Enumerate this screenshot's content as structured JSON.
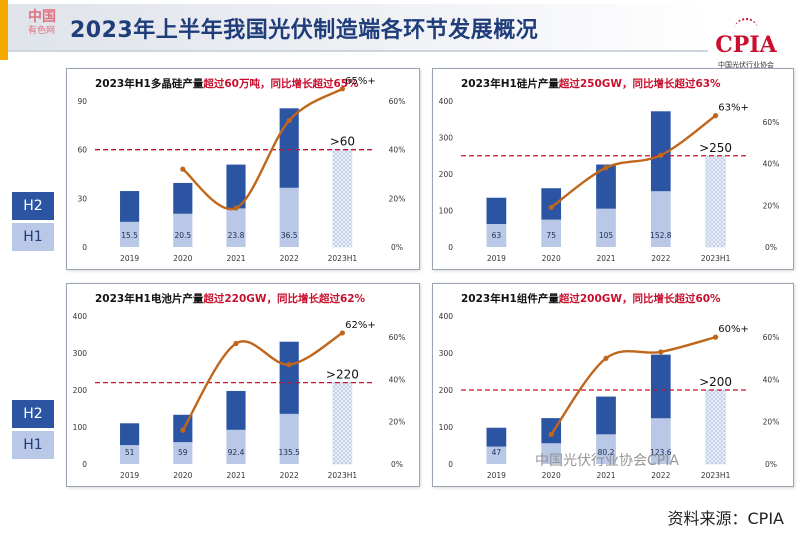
{
  "page": {
    "title": "2023年上半年我国光伏制造端各环节发展概况",
    "watermark_top": "中国",
    "watermark_top_sub": "有色网",
    "logo_text": "CPIA",
    "logo_sub": "中国光伏行业协会",
    "watermark_bottom": "中国光伏行业协会CPIA",
    "source": "资料来源：CPIA",
    "legend": {
      "h2": "H2",
      "h1": "H1"
    }
  },
  "colors": {
    "h2": "#2b55a3",
    "h1": "#b9c8e6",
    "line": "#c0661b",
    "threshold": "#c8102e",
    "title_red": "#c8102e",
    "title_dark": "#111111",
    "hatch": "#6f8fc5"
  },
  "chart_data": [
    {
      "type": "bar",
      "title_prefix": "2023年H1多晶硅产量",
      "title_highlight": "超过60万吨，同比增长超过65%",
      "categories": [
        "2019",
        "2020",
        "2021",
        "2022",
        "2023H1"
      ],
      "series": [
        {
          "name": "H1",
          "values": [
            15.5,
            20.5,
            23.8,
            36.5,
            60
          ]
        },
        {
          "name": "H2",
          "values": [
            19,
            19,
            27,
            49,
            0
          ]
        }
      ],
      "h1_labels": [
        "15.5",
        "20.5",
        "23.8",
        "36.5",
        ""
      ],
      "growth_line": {
        "name": "同比增长",
        "values": [
          null,
          32,
          16,
          52,
          65
        ]
      },
      "threshold": {
        "value": 60,
        "label": ">60"
      },
      "growth_label": "65%+",
      "ylim": [
        0,
        90
      ],
      "yticks": [
        0,
        30,
        60,
        90
      ],
      "y2lim": [
        0,
        60
      ],
      "y2ticks": [
        "0%",
        "20%",
        "40%",
        "60%"
      ]
    },
    {
      "type": "bar",
      "title_prefix": "2023年H1硅片产量",
      "title_highlight": "超过250GW，同比增长超过63%",
      "categories": [
        "2019",
        "2020",
        "2021",
        "2022",
        "2023H1"
      ],
      "series": [
        {
          "name": "H1",
          "values": [
            63,
            75,
            105,
            152.8,
            250
          ]
        },
        {
          "name": "H2",
          "values": [
            72,
            86,
            121,
            219,
            0
          ]
        }
      ],
      "h1_labels": [
        "63",
        "75",
        "105",
        "152.8",
        ""
      ],
      "growth_line": {
        "name": "同比增长",
        "values": [
          null,
          19,
          38,
          44,
          63
        ]
      },
      "threshold": {
        "value": 250,
        "label": ">250"
      },
      "growth_label": "63%+",
      "ylim": [
        0,
        400
      ],
      "yticks": [
        0,
        100,
        200,
        300,
        400
      ],
      "y2lim": [
        0,
        70
      ],
      "y2ticks": [
        "0%",
        "20%",
        "40%",
        "60%"
      ]
    },
    {
      "type": "bar",
      "title_prefix": "2023年H1电池片产量",
      "title_highlight": "超过220GW，同比增长超过62%",
      "categories": [
        "2019",
        "2020",
        "2021",
        "2022",
        "2023H1"
      ],
      "series": [
        {
          "name": "H1",
          "values": [
            51,
            59,
            92.4,
            135.5,
            220
          ]
        },
        {
          "name": "H2",
          "values": [
            59,
            74,
            105,
            195,
            0
          ]
        }
      ],
      "h1_labels": [
        "51",
        "59",
        "92.4",
        "135.5",
        ""
      ],
      "growth_line": {
        "name": "同比增长",
        "values": [
          null,
          16,
          57,
          47,
          62
        ]
      },
      "threshold": {
        "value": 220,
        "label": ">220"
      },
      "growth_label": "62%+",
      "ylim": [
        0,
        400
      ],
      "yticks": [
        0,
        100,
        200,
        300,
        400
      ],
      "y2lim": [
        0,
        70
      ],
      "y2ticks": [
        "0%",
        "20%",
        "40%",
        "60%"
      ]
    },
    {
      "type": "bar",
      "title_prefix": "2023年H1组件产量",
      "title_highlight": "超过200GW，同比增长超过60%",
      "categories": [
        "2019",
        "2020",
        "2021",
        "2022",
        "2023H1"
      ],
      "series": [
        {
          "name": "H1",
          "values": [
            47,
            56,
            80.2,
            123.6,
            200
          ]
        },
        {
          "name": "H2",
          "values": [
            51,
            68,
            102,
            172,
            0
          ]
        }
      ],
      "h1_labels": [
        "47",
        "",
        "80.2",
        "123.6",
        ""
      ],
      "growth_line": {
        "name": "同比增长",
        "values": [
          null,
          14,
          50,
          53,
          60
        ]
      },
      "threshold": {
        "value": 200,
        "label": ">200"
      },
      "growth_label": "60%+",
      "ylim": [
        0,
        400
      ],
      "yticks": [
        0,
        100,
        200,
        300,
        400
      ],
      "y2lim": [
        0,
        70
      ],
      "y2ticks": [
        "0%",
        "20%",
        "40%",
        "60%"
      ]
    }
  ]
}
